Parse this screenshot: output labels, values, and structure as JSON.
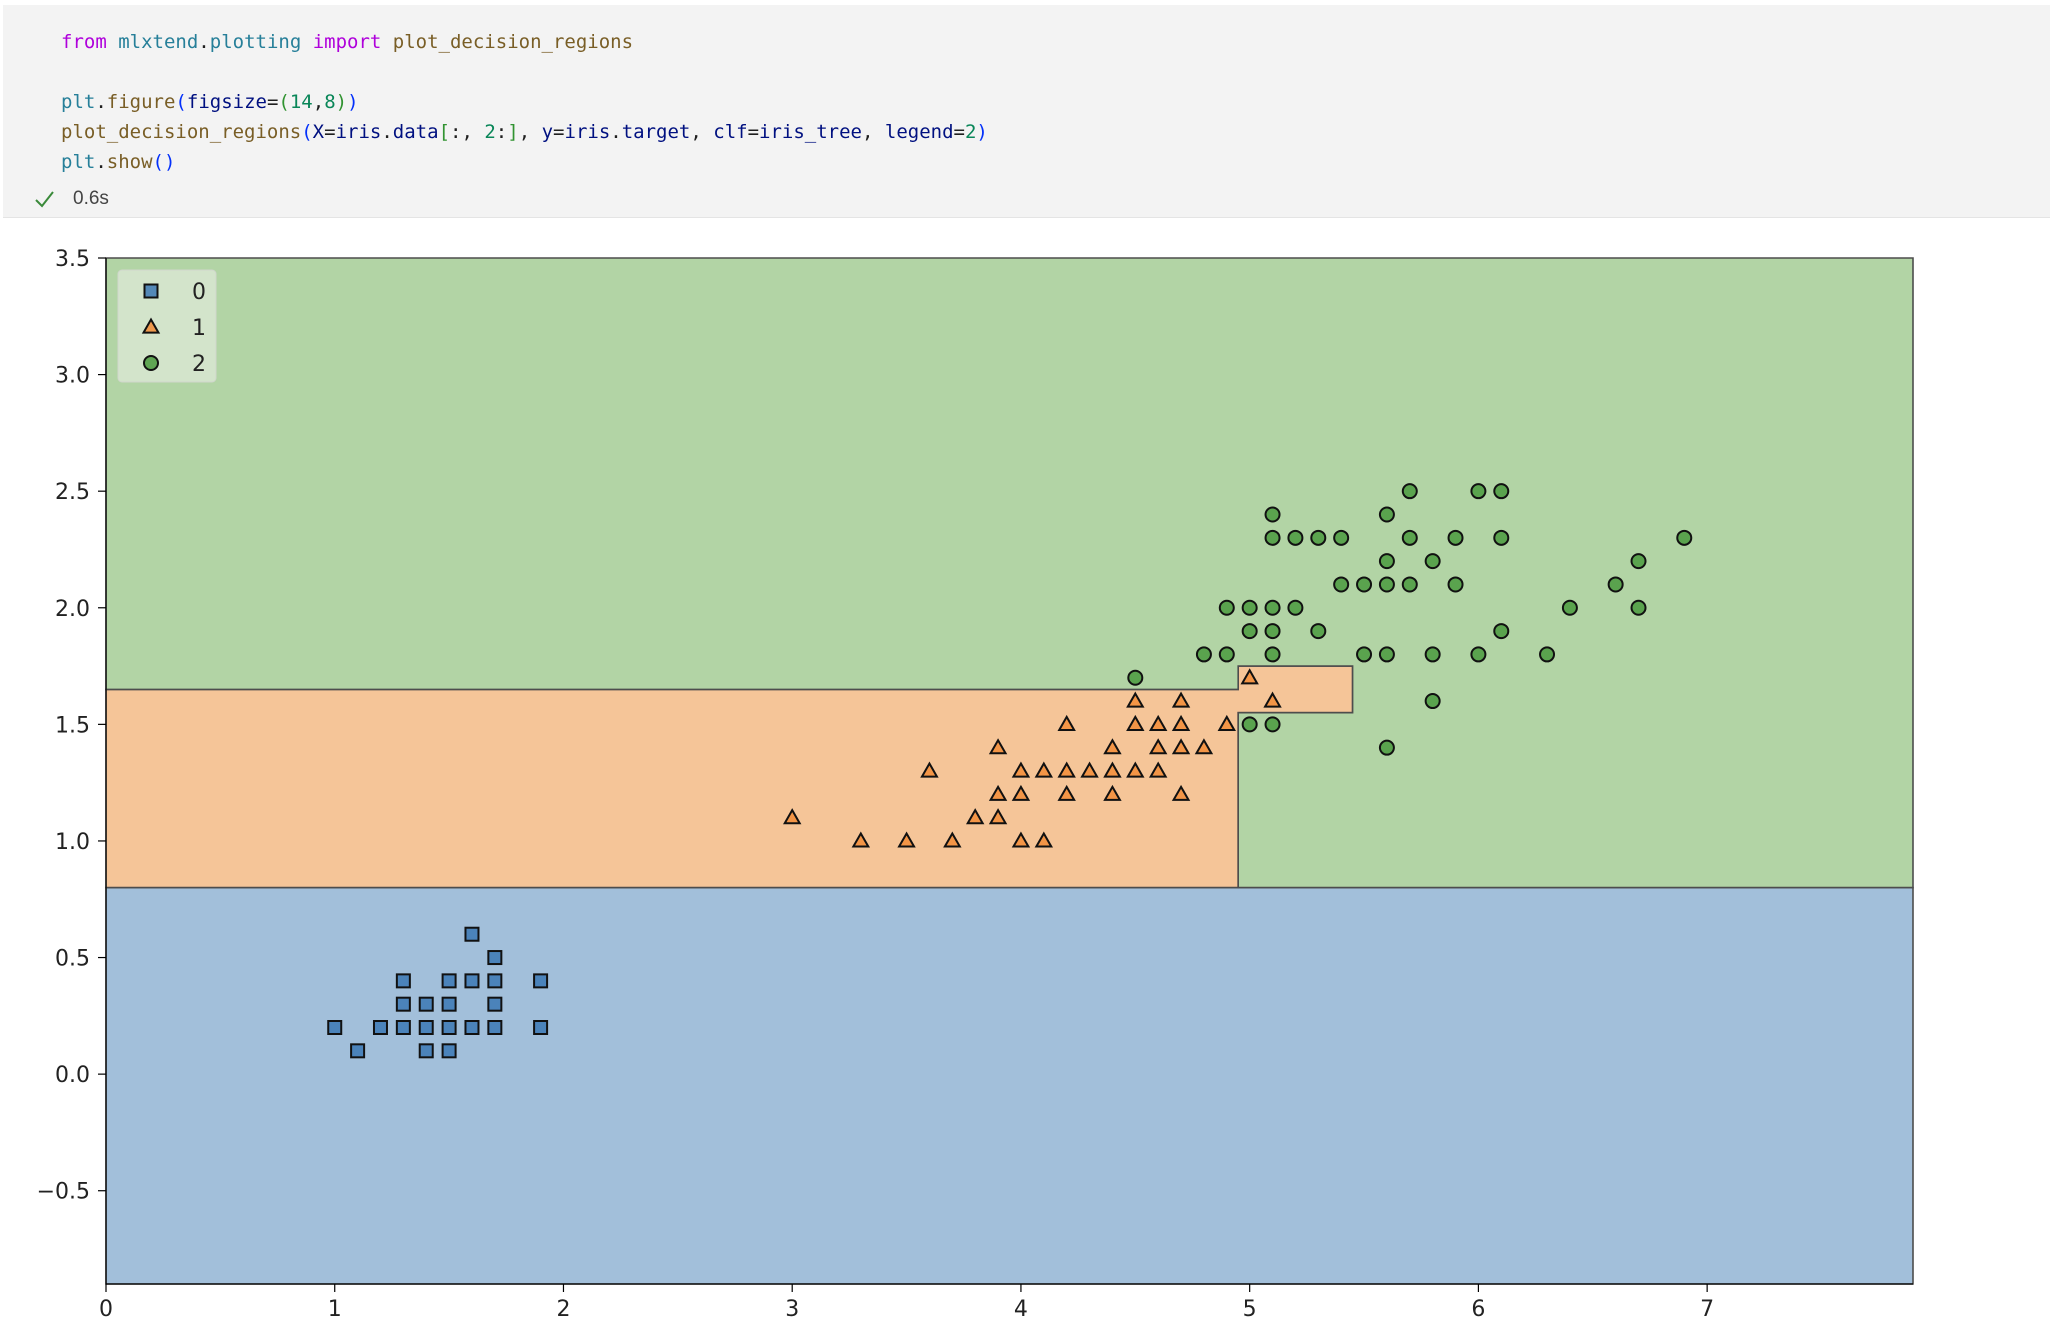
{
  "cell": {
    "code_lines": [
      [
        {
          "t": "from",
          "c": "kw"
        },
        {
          "t": " ",
          "c": "pun"
        },
        {
          "t": "mlxtend",
          "c": "mod"
        },
        {
          "t": ".",
          "c": "pun"
        },
        {
          "t": "plotting",
          "c": "mod"
        },
        {
          "t": " ",
          "c": "pun"
        },
        {
          "t": "import",
          "c": "kw"
        },
        {
          "t": " plot_decision_regions",
          "c": "fn"
        }
      ],
      [],
      [
        {
          "t": "plt",
          "c": "mod"
        },
        {
          "t": ".",
          "c": "pun"
        },
        {
          "t": "figure",
          "c": "fn"
        },
        {
          "t": "(",
          "c": "par1"
        },
        {
          "t": "figsize",
          "c": "var"
        },
        {
          "t": "=",
          "c": "pun"
        },
        {
          "t": "(",
          "c": "par2"
        },
        {
          "t": "14",
          "c": "num"
        },
        {
          "t": ",",
          "c": "pun"
        },
        {
          "t": "8",
          "c": "num"
        },
        {
          "t": ")",
          "c": "par2"
        },
        {
          "t": ")",
          "c": "par1"
        }
      ],
      [
        {
          "t": "plot_decision_regions",
          "c": "fn"
        },
        {
          "t": "(",
          "c": "par1"
        },
        {
          "t": "X",
          "c": "var"
        },
        {
          "t": "=",
          "c": "pun"
        },
        {
          "t": "iris",
          "c": "var"
        },
        {
          "t": ".",
          "c": "pun"
        },
        {
          "t": "data",
          "c": "var"
        },
        {
          "t": "[",
          "c": "par2"
        },
        {
          "t": ":, ",
          "c": "pun"
        },
        {
          "t": "2",
          "c": "num"
        },
        {
          "t": ":",
          "c": "pun"
        },
        {
          "t": "]",
          "c": "par2"
        },
        {
          "t": ", ",
          "c": "pun"
        },
        {
          "t": "y",
          "c": "var"
        },
        {
          "t": "=",
          "c": "pun"
        },
        {
          "t": "iris",
          "c": "var"
        },
        {
          "t": ".",
          "c": "pun"
        },
        {
          "t": "target",
          "c": "var"
        },
        {
          "t": ", ",
          "c": "pun"
        },
        {
          "t": "clf",
          "c": "var"
        },
        {
          "t": "=",
          "c": "pun"
        },
        {
          "t": "iris_tree",
          "c": "var"
        },
        {
          "t": ", ",
          "c": "pun"
        },
        {
          "t": "legend",
          "c": "var"
        },
        {
          "t": "=",
          "c": "pun"
        },
        {
          "t": "2",
          "c": "num"
        },
        {
          "t": ")",
          "c": "par1"
        }
      ],
      [
        {
          "t": "plt",
          "c": "mod"
        },
        {
          "t": ".",
          "c": "pun"
        },
        {
          "t": "show",
          "c": "fn"
        },
        {
          "t": "()",
          "c": "par1"
        }
      ]
    ],
    "exec_time": "0.6s",
    "status_icon": "checkmark-icon"
  },
  "chart_data": {
    "type": "scatter",
    "title": "",
    "xlabel": "",
    "ylabel": "",
    "xlim": [
      0,
      7.9
    ],
    "ylim": [
      -0.9,
      3.5
    ],
    "xticks": [
      0,
      1,
      2,
      3,
      4,
      5,
      6,
      7
    ],
    "yticks": [
      -0.5,
      0.0,
      0.5,
      1.0,
      1.5,
      2.0,
      2.5,
      3.0,
      3.5
    ],
    "ytick_labels": [
      "−0.5",
      "0.0",
      "0.5",
      "1.0",
      "1.5",
      "2.0",
      "2.5",
      "3.0",
      "3.5"
    ],
    "grid": false,
    "legend": "top-left",
    "regions": [
      {
        "class": "0",
        "color": "#a2bfda",
        "polygon": [
          [
            0,
            -0.9
          ],
          [
            7.9,
            -0.9
          ],
          [
            7.9,
            0.8
          ],
          [
            0,
            0.8
          ]
        ]
      },
      {
        "class": "1",
        "color": "#f5c598",
        "polygon": [
          [
            0,
            0.8
          ],
          [
            4.95,
            0.8
          ],
          [
            4.95,
            1.55
          ],
          [
            5.45,
            1.55
          ],
          [
            5.45,
            1.75
          ],
          [
            4.95,
            1.75
          ],
          [
            4.95,
            1.65
          ],
          [
            0,
            1.65
          ]
        ]
      },
      {
        "class": "2",
        "color": "#b2d4a5",
        "polygon": [
          [
            0,
            1.65
          ],
          [
            4.95,
            1.65
          ],
          [
            4.95,
            1.75
          ],
          [
            5.45,
            1.75
          ],
          [
            5.45,
            1.55
          ],
          [
            4.95,
            1.55
          ],
          [
            4.95,
            0.8
          ],
          [
            7.9,
            0.8
          ],
          [
            7.9,
            3.5
          ],
          [
            0,
            3.5
          ]
        ]
      }
    ],
    "series": [
      {
        "name": "0",
        "marker": "square",
        "color": "#3c78b4",
        "points": [
          [
            1.0,
            0.2
          ],
          [
            1.1,
            0.1
          ],
          [
            1.2,
            0.2
          ],
          [
            1.3,
            0.2
          ],
          [
            1.3,
            0.3
          ],
          [
            1.3,
            0.4
          ],
          [
            1.4,
            0.1
          ],
          [
            1.4,
            0.2
          ],
          [
            1.4,
            0.3
          ],
          [
            1.5,
            0.1
          ],
          [
            1.5,
            0.2
          ],
          [
            1.5,
            0.3
          ],
          [
            1.5,
            0.4
          ],
          [
            1.6,
            0.2
          ],
          [
            1.6,
            0.4
          ],
          [
            1.6,
            0.6
          ],
          [
            1.7,
            0.2
          ],
          [
            1.7,
            0.3
          ],
          [
            1.7,
            0.4
          ],
          [
            1.7,
            0.5
          ],
          [
            1.9,
            0.2
          ],
          [
            1.9,
            0.4
          ]
        ]
      },
      {
        "name": "1",
        "marker": "triangle",
        "color": "#f28c37",
        "points": [
          [
            3.0,
            1.1
          ],
          [
            3.3,
            1.0
          ],
          [
            3.5,
            1.0
          ],
          [
            3.6,
            1.3
          ],
          [
            3.7,
            1.0
          ],
          [
            3.8,
            1.1
          ],
          [
            3.9,
            1.1
          ],
          [
            3.9,
            1.2
          ],
          [
            3.9,
            1.4
          ],
          [
            4.0,
            1.0
          ],
          [
            4.0,
            1.2
          ],
          [
            4.0,
            1.3
          ],
          [
            4.1,
            1.0
          ],
          [
            4.1,
            1.3
          ],
          [
            4.2,
            1.2
          ],
          [
            4.2,
            1.3
          ],
          [
            4.2,
            1.5
          ],
          [
            4.3,
            1.3
          ],
          [
            4.4,
            1.2
          ],
          [
            4.4,
            1.3
          ],
          [
            4.4,
            1.4
          ],
          [
            4.5,
            1.3
          ],
          [
            4.5,
            1.5
          ],
          [
            4.5,
            1.6
          ],
          [
            4.6,
            1.3
          ],
          [
            4.6,
            1.4
          ],
          [
            4.6,
            1.5
          ],
          [
            4.7,
            1.2
          ],
          [
            4.7,
            1.4
          ],
          [
            4.7,
            1.5
          ],
          [
            4.7,
            1.6
          ],
          [
            4.8,
            1.4
          ],
          [
            4.9,
            1.5
          ],
          [
            5.0,
            1.7
          ],
          [
            5.1,
            1.6
          ]
        ]
      },
      {
        "name": "2",
        "marker": "circle",
        "color": "#4a9a3e",
        "points": [
          [
            4.5,
            1.7
          ],
          [
            4.8,
            1.8
          ],
          [
            4.9,
            1.8
          ],
          [
            4.9,
            2.0
          ],
          [
            5.0,
            1.5
          ],
          [
            5.0,
            1.9
          ],
          [
            5.0,
            2.0
          ],
          [
            5.1,
            1.5
          ],
          [
            5.1,
            1.8
          ],
          [
            5.1,
            1.9
          ],
          [
            5.1,
            2.0
          ],
          [
            5.1,
            2.3
          ],
          [
            5.1,
            2.4
          ],
          [
            5.2,
            2.0
          ],
          [
            5.2,
            2.3
          ],
          [
            5.3,
            1.9
          ],
          [
            5.3,
            2.3
          ],
          [
            5.4,
            2.1
          ],
          [
            5.4,
            2.3
          ],
          [
            5.5,
            1.8
          ],
          [
            5.5,
            2.1
          ],
          [
            5.6,
            1.4
          ],
          [
            5.6,
            1.8
          ],
          [
            5.6,
            2.1
          ],
          [
            5.6,
            2.2
          ],
          [
            5.6,
            2.4
          ],
          [
            5.7,
            2.1
          ],
          [
            5.7,
            2.3
          ],
          [
            5.7,
            2.5
          ],
          [
            5.8,
            1.6
          ],
          [
            5.8,
            1.8
          ],
          [
            5.8,
            2.2
          ],
          [
            5.9,
            2.1
          ],
          [
            5.9,
            2.3
          ],
          [
            6.0,
            1.8
          ],
          [
            6.0,
            2.5
          ],
          [
            6.1,
            1.9
          ],
          [
            6.1,
            2.3
          ],
          [
            6.1,
            2.5
          ],
          [
            6.3,
            1.8
          ],
          [
            6.4,
            2.0
          ],
          [
            6.6,
            2.1
          ],
          [
            6.7,
            2.0
          ],
          [
            6.7,
            2.2
          ],
          [
            6.9,
            2.3
          ]
        ]
      }
    ]
  }
}
